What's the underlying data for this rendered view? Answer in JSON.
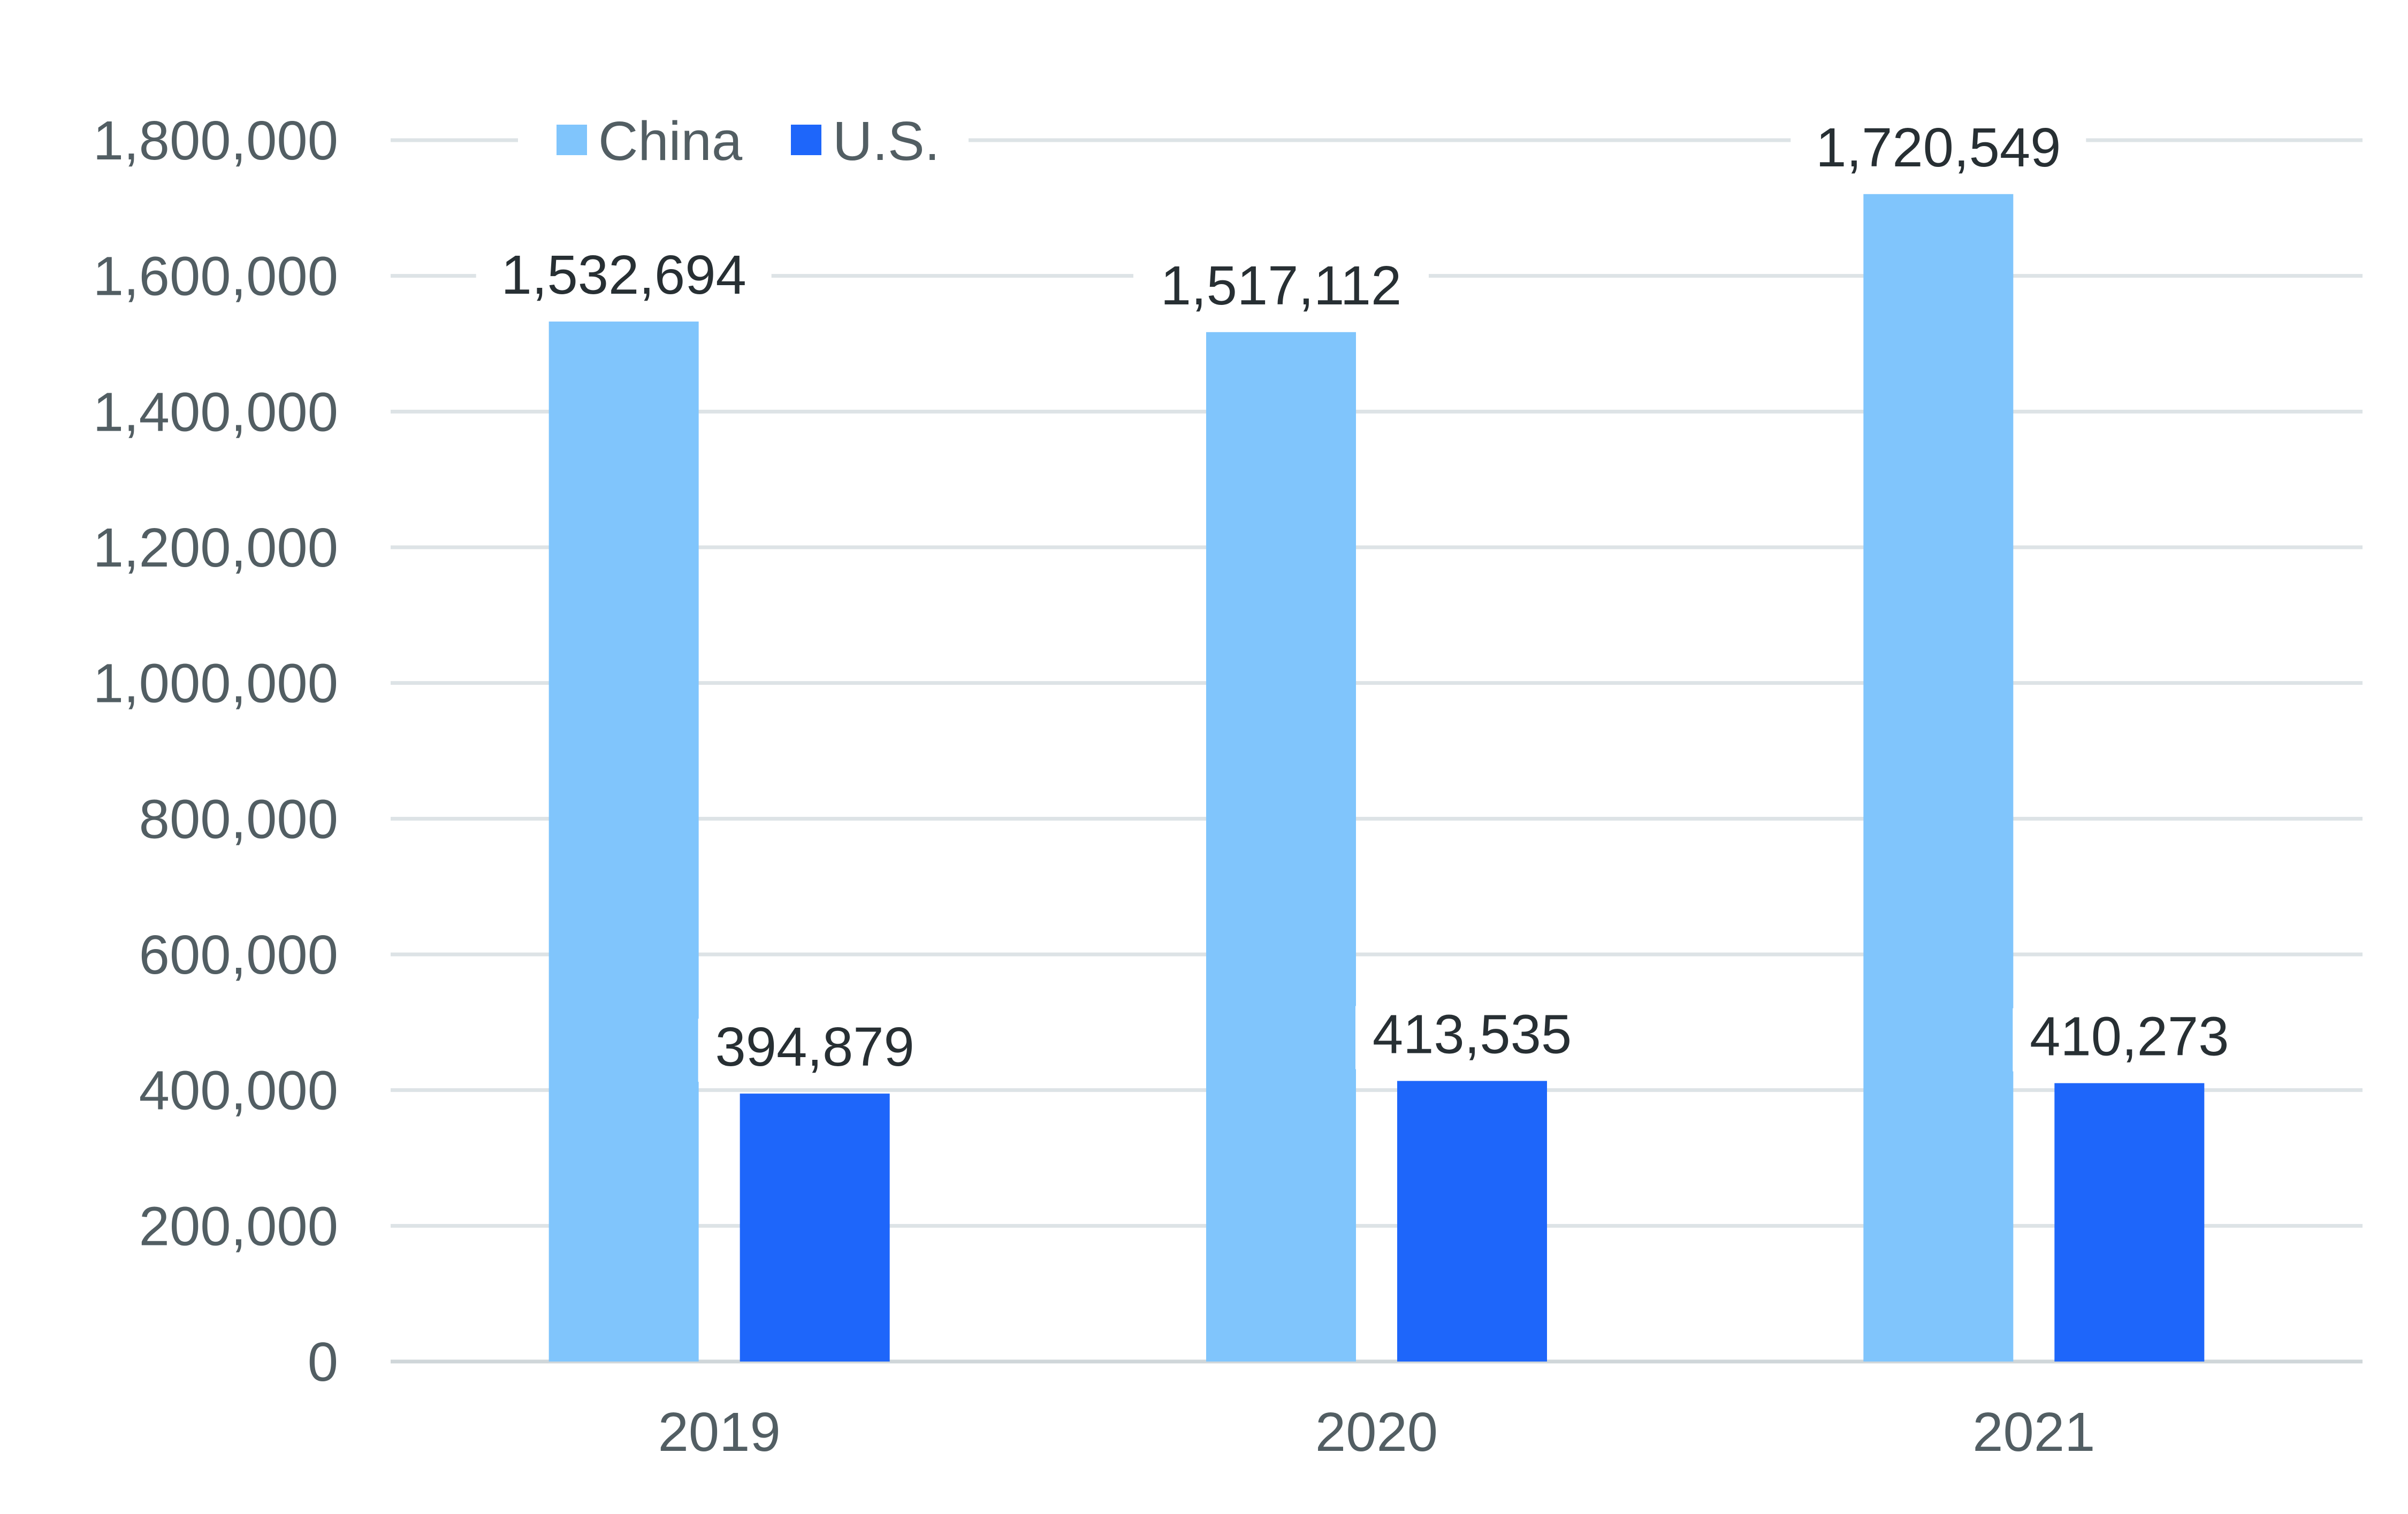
{
  "chart_data": {
    "type": "bar",
    "title": "",
    "xlabel": "",
    "ylabel": "",
    "categories": [
      "2019",
      "2020",
      "2021"
    ],
    "series": [
      {
        "name": "China",
        "color": "#80c5fc",
        "values": [
          1532694,
          1517112,
          1720549
        ],
        "labels": [
          "1,532,694",
          "1,517,112",
          "1,720,549"
        ]
      },
      {
        "name": "U.S.",
        "color": "#1e66fa",
        "values": [
          394879,
          413535,
          410273
        ],
        "labels": [
          "394,879",
          "413,535",
          "410,273"
        ]
      }
    ],
    "ylim": [
      0,
      1800000
    ],
    "yticks": [
      0,
      200000,
      400000,
      600000,
      800000,
      1000000,
      1200000,
      1400000,
      1600000,
      1800000
    ],
    "ytick_labels": [
      "0",
      "200,000",
      "400,000",
      "600,000",
      "800,000",
      "1,000,000",
      "1,200,000",
      "1,400,000",
      "1,600,000",
      "1,800,000"
    ],
    "grid": true,
    "legend": "top-left"
  }
}
